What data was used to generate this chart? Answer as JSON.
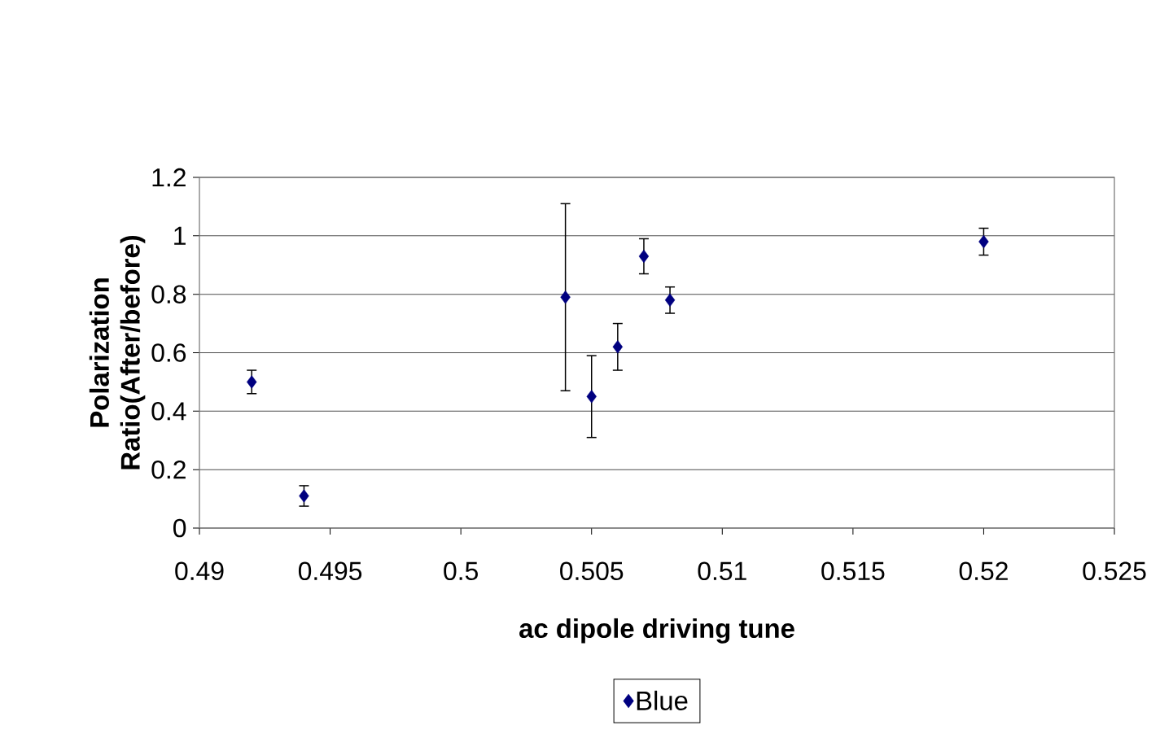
{
  "chart_data": {
    "type": "scatter",
    "xlabel": "ac dipole driving tune",
    "ylabel": "Polarization Ratio(After/before)",
    "x": [
      0.492,
      0.494,
      0.504,
      0.505,
      0.506,
      0.507,
      0.508,
      0.52
    ],
    "series": [
      {
        "name": "Blue",
        "color": "#000080",
        "values": [
          0.5,
          0.11,
          0.79,
          0.45,
          0.62,
          0.93,
          0.78,
          0.98
        ],
        "errors": [
          0.04,
          0.035,
          0.32,
          0.14,
          0.08,
          0.06,
          0.045,
          0.046
        ]
      }
    ],
    "xlim": [
      0.49,
      0.525
    ],
    "ylim": [
      0,
      1.2
    ],
    "xticks": [
      0.49,
      0.495,
      0.5,
      0.505,
      0.51,
      0.515,
      0.52,
      0.525
    ],
    "yticks": [
      0,
      0.2,
      0.4,
      0.6,
      0.8,
      1,
      1.2
    ],
    "grid": "y",
    "legend": "bottom",
    "marker": "diamond"
  }
}
